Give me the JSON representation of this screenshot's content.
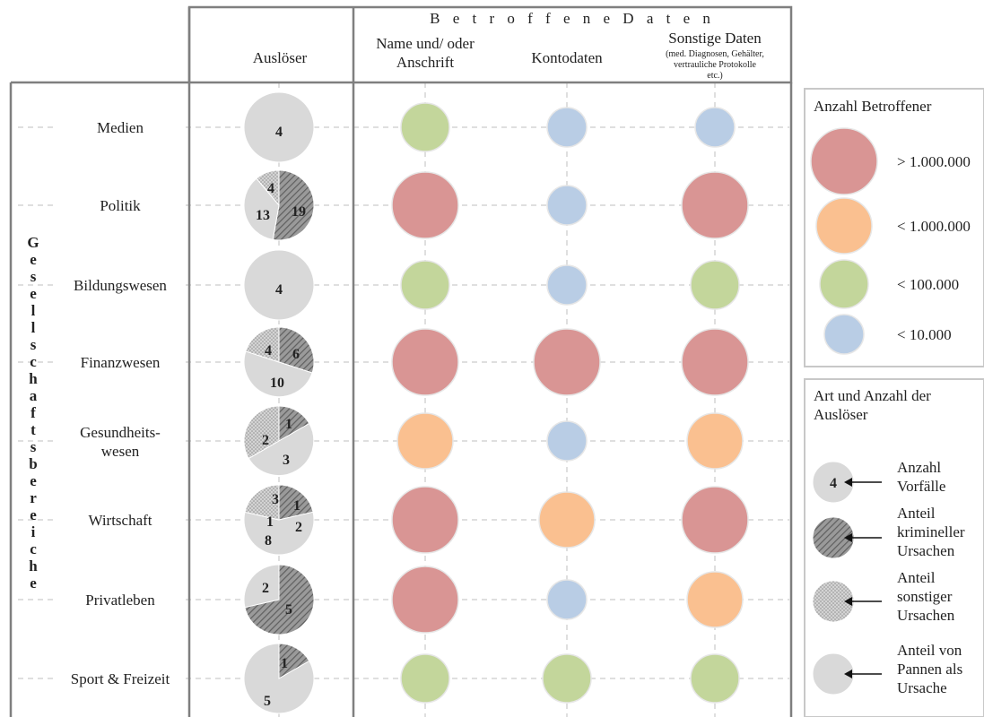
{
  "chart_data": {
    "type": "table",
    "header": {
      "group_title": "Betroffene Daten",
      "trigger_column": "Auslöser",
      "data_columns": [
        {
          "label": [
            "Name und/ oder",
            "Anschrift"
          ],
          "note": []
        },
        {
          "label": [
            "Kontodaten"
          ],
          "note": []
        },
        {
          "label": [
            "Sonstige Daten"
          ],
          "note": [
            "(med. Diagnosen, Gehälter,",
            "vertrauliche Protokolle",
            "etc.)"
          ]
        }
      ]
    },
    "row_axis_label": "Gesellschaftsbereiche",
    "rows": [
      {
        "label": [
          "Medien"
        ],
        "triggers": {
          "criminal": 0,
          "other": 0,
          "mishap": 4
        },
        "affected": [
          "<100.000",
          "<10.000",
          "<10.000"
        ]
      },
      {
        "label": [
          "Politik"
        ],
        "triggers": {
          "criminal": 19,
          "other": 4,
          "mishap": 13
        },
        "affected": [
          ">1.000.000",
          "<10.000",
          ">1.000.000"
        ]
      },
      {
        "label": [
          "Bildungswesen"
        ],
        "triggers": {
          "criminal": 0,
          "other": 0,
          "mishap": 4
        },
        "affected": [
          "<100.000",
          "<10.000",
          "<100.000"
        ]
      },
      {
        "label": [
          "Finanzwesen"
        ],
        "triggers": {
          "criminal": 6,
          "other": 4,
          "mishap": 10
        },
        "affected": [
          ">1.000.000",
          ">1.000.000",
          ">1.000.000"
        ]
      },
      {
        "label": [
          "Gesundheits-",
          "wesen"
        ],
        "triggers": {
          "criminal": 1,
          "other": 2,
          "mishap": 3
        },
        "affected": [
          "<1.000.000",
          "<10.000",
          "<1.000.000"
        ]
      },
      {
        "label": [
          "Wirtschaft"
        ],
        "triggers": {
          "criminal": 3,
          "other": 3,
          "mishap": 8
        },
        "affected": [
          ">1.000.000",
          "<1.000.000",
          ">1.000.000"
        ]
      },
      {
        "label": [
          "Privatleben"
        ],
        "triggers": {
          "criminal": 5,
          "other": 0,
          "mishap": 2
        },
        "affected": [
          ">1.000.000",
          "<10.000",
          "<1.000.000"
        ]
      },
      {
        "label": [
          "Sport & Freizeit"
        ],
        "triggers": {
          "criminal": 1,
          "other": 0,
          "mishap": 5
        },
        "affected": [
          "<100.000",
          "<100.000",
          "<100.000"
        ]
      }
    ],
    "pie_labels": [
      [
        {
          "text": "4",
          "dx": 0,
          "dy": 4
        }
      ],
      [
        {
          "text": "4",
          "dx": -9,
          "dy": -20
        },
        {
          "text": "13",
          "dx": -18,
          "dy": 10
        },
        {
          "text": "19",
          "dx": 22,
          "dy": 6
        }
      ],
      [
        {
          "text": "4",
          "dx": 0,
          "dy": 4
        }
      ],
      [
        {
          "text": "4",
          "dx": -12,
          "dy": -14
        },
        {
          "text": "6",
          "dx": 19,
          "dy": -10
        },
        {
          "text": "10",
          "dx": -2,
          "dy": 22
        }
      ],
      [
        {
          "text": "1",
          "dx": 11,
          "dy": -20
        },
        {
          "text": "2",
          "dx": -15,
          "dy": -2
        },
        {
          "text": "3",
          "dx": 8,
          "dy": 20
        }
      ],
      [
        {
          "text": "3",
          "dx": -4,
          "dy": -24
        },
        {
          "text": "1",
          "dx": 20,
          "dy": -17
        },
        {
          "text": "2",
          "dx": 22,
          "dy": 7
        },
        {
          "text": "1",
          "dx": -10,
          "dy": 1
        },
        {
          "text": "8",
          "dx": -12,
          "dy": 22
        }
      ],
      [
        {
          "text": "2",
          "dx": -15,
          "dy": -14
        },
        {
          "text": "5",
          "dx": 11,
          "dy": 10
        }
      ],
      [
        {
          "text": "1",
          "dx": 6,
          "dy": -18
        },
        {
          "text": "5",
          "dx": -13,
          "dy": 24
        }
      ]
    ],
    "legend_size": {
      "title": "Anzahl Betroffener",
      "classes": [
        {
          "key": ">1.000.000",
          "label": "> 1.000.000",
          "color": "#d99594"
        },
        {
          "key": "<1.000.000",
          "label": "< 1.000.000",
          "color": "#fac090"
        },
        {
          "key": "<100.000",
          "label": "< 100.000",
          "color": "#c3d69b"
        },
        {
          "key": "<10.000",
          "label": "< 10.000",
          "color": "#b9cde5"
        }
      ]
    },
    "legend_triggers": {
      "title": [
        "Art und Anzahl der",
        "Auslöser"
      ],
      "example_count": "4",
      "items": [
        {
          "key": "count",
          "label": [
            "Anzahl",
            "Vorfälle"
          ]
        },
        {
          "key": "criminal",
          "label": [
            "Anteil",
            "krimineller",
            "Ursachen"
          ]
        },
        {
          "key": "other",
          "label": [
            "Anteil",
            "sonstiger",
            "Ursachen"
          ]
        },
        {
          "key": "mishap",
          "label": [
            "Anteil von",
            "Pannen als",
            "Ursache"
          ]
        }
      ]
    },
    "colors": {
      "criminal": "#8a8a8a",
      "other": "#c6c6c6",
      "mishap": "#d9d9d9",
      "border": "#7f7f7f",
      "grid": "#bfbfbf"
    }
  }
}
